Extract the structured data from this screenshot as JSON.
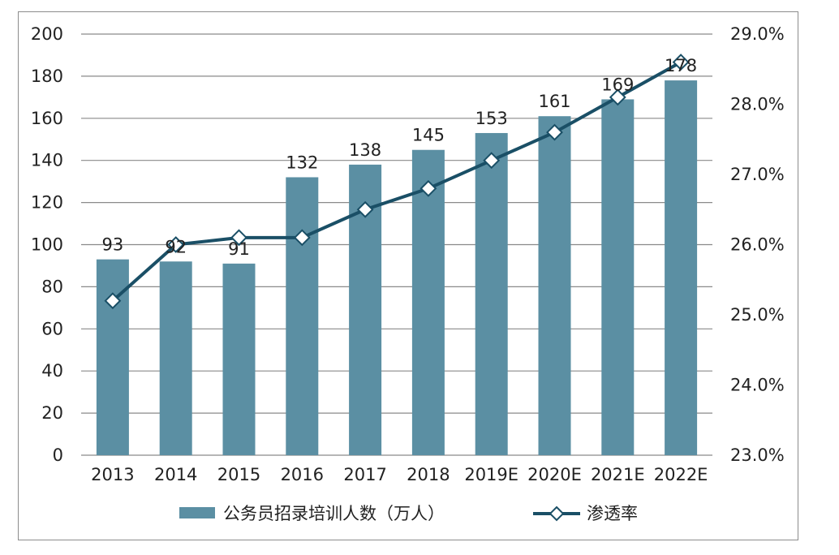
{
  "chart_data": {
    "type": "bar",
    "categories": [
      "2013",
      "2014",
      "2015",
      "2016",
      "2017",
      "2018",
      "2019E",
      "2020E",
      "2021E",
      "2022E"
    ],
    "series": [
      {
        "name": "公务员招录培训人数（万人）",
        "type": "bar",
        "axis": "left",
        "values": [
          93,
          92,
          91,
          132,
          138,
          145,
          153,
          161,
          169,
          178
        ],
        "data_labels": [
          "93",
          "92",
          "91",
          "132",
          "138",
          "145",
          "153",
          "161",
          "169",
          "178"
        ],
        "color": "#5b8fa3"
      },
      {
        "name": "渗透率",
        "type": "line",
        "axis": "right",
        "values": [
          25.2,
          26.0,
          26.1,
          26.1,
          26.5,
          26.8,
          27.2,
          27.6,
          28.1,
          28.6
        ],
        "color": "#1a4f66"
      }
    ],
    "y_left": {
      "ylim": [
        0,
        200
      ],
      "ticks": [
        "0",
        "20",
        "40",
        "60",
        "80",
        "100",
        "120",
        "140",
        "160",
        "180",
        "200"
      ]
    },
    "y_right": {
      "ylim": [
        23.0,
        29.0
      ],
      "ticks": [
        "23.0%",
        "24.0%",
        "25.0%",
        "26.0%",
        "27.0%",
        "28.0%",
        "29.0%"
      ]
    },
    "grid": "horizontal",
    "legend": "bottom",
    "title": "",
    "xlabel": "",
    "ylabel": ""
  }
}
